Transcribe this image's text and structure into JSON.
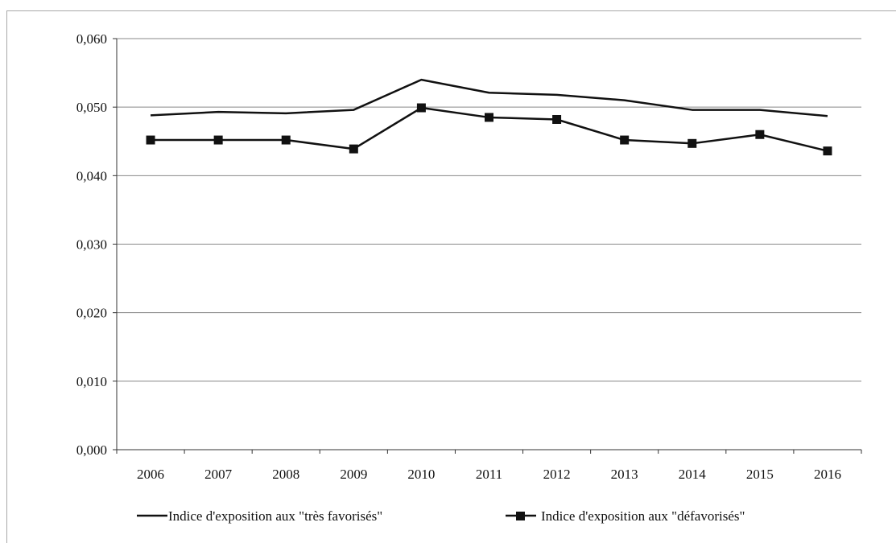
{
  "chart_data": {
    "type": "line",
    "categories": [
      "2006",
      "2007",
      "2008",
      "2009",
      "2010",
      "2011",
      "2012",
      "2013",
      "2014",
      "2015",
      "2016"
    ],
    "series": [
      {
        "name": "Indice d'exposition aux \"très favorisés\"",
        "values": [
          0.0488,
          0.0493,
          0.0491,
          0.0496,
          0.054,
          0.0521,
          0.0518,
          0.051,
          0.0496,
          0.0496,
          0.0487
        ],
        "marker": "none",
        "color": "#111111"
      },
      {
        "name": "Indice d'exposition aux \"défavorisés\"",
        "values": [
          0.0452,
          0.0452,
          0.0452,
          0.0439,
          0.0499,
          0.0485,
          0.0482,
          0.0452,
          0.0447,
          0.046,
          0.0436
        ],
        "marker": "square",
        "color": "#111111"
      }
    ],
    "yticks": [
      "0,000",
      "0,010",
      "0,020",
      "0,030",
      "0,040",
      "0,050",
      "0,060"
    ],
    "ylim": [
      0,
      0.06
    ],
    "grid": true,
    "legend_position": "bottom",
    "title": "",
    "xlabel": "",
    "ylabel": ""
  }
}
